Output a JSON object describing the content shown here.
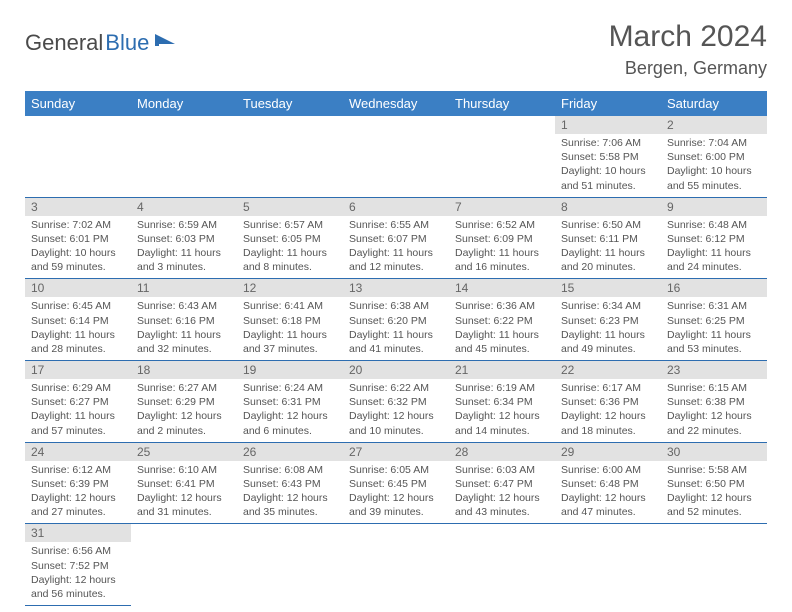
{
  "brand": {
    "part1": "General",
    "part2": "Blue"
  },
  "title": "March 2024",
  "location": "Bergen, Germany",
  "header_bg": "#3b7fc4",
  "dayname_bg": "#e2e2e2",
  "border_color": "#2d6db0",
  "weekdays": [
    "Sunday",
    "Monday",
    "Tuesday",
    "Wednesday",
    "Thursday",
    "Friday",
    "Saturday"
  ],
  "leading_blanks": 5,
  "days": [
    {
      "n": "1",
      "sr": "Sunrise: 7:06 AM",
      "ss": "Sunset: 5:58 PM",
      "dl": "Daylight: 10 hours and 51 minutes."
    },
    {
      "n": "2",
      "sr": "Sunrise: 7:04 AM",
      "ss": "Sunset: 6:00 PM",
      "dl": "Daylight: 10 hours and 55 minutes."
    },
    {
      "n": "3",
      "sr": "Sunrise: 7:02 AM",
      "ss": "Sunset: 6:01 PM",
      "dl": "Daylight: 10 hours and 59 minutes."
    },
    {
      "n": "4",
      "sr": "Sunrise: 6:59 AM",
      "ss": "Sunset: 6:03 PM",
      "dl": "Daylight: 11 hours and 3 minutes."
    },
    {
      "n": "5",
      "sr": "Sunrise: 6:57 AM",
      "ss": "Sunset: 6:05 PM",
      "dl": "Daylight: 11 hours and 8 minutes."
    },
    {
      "n": "6",
      "sr": "Sunrise: 6:55 AM",
      "ss": "Sunset: 6:07 PM",
      "dl": "Daylight: 11 hours and 12 minutes."
    },
    {
      "n": "7",
      "sr": "Sunrise: 6:52 AM",
      "ss": "Sunset: 6:09 PM",
      "dl": "Daylight: 11 hours and 16 minutes."
    },
    {
      "n": "8",
      "sr": "Sunrise: 6:50 AM",
      "ss": "Sunset: 6:11 PM",
      "dl": "Daylight: 11 hours and 20 minutes."
    },
    {
      "n": "9",
      "sr": "Sunrise: 6:48 AM",
      "ss": "Sunset: 6:12 PM",
      "dl": "Daylight: 11 hours and 24 minutes."
    },
    {
      "n": "10",
      "sr": "Sunrise: 6:45 AM",
      "ss": "Sunset: 6:14 PM",
      "dl": "Daylight: 11 hours and 28 minutes."
    },
    {
      "n": "11",
      "sr": "Sunrise: 6:43 AM",
      "ss": "Sunset: 6:16 PM",
      "dl": "Daylight: 11 hours and 32 minutes."
    },
    {
      "n": "12",
      "sr": "Sunrise: 6:41 AM",
      "ss": "Sunset: 6:18 PM",
      "dl": "Daylight: 11 hours and 37 minutes."
    },
    {
      "n": "13",
      "sr": "Sunrise: 6:38 AM",
      "ss": "Sunset: 6:20 PM",
      "dl": "Daylight: 11 hours and 41 minutes."
    },
    {
      "n": "14",
      "sr": "Sunrise: 6:36 AM",
      "ss": "Sunset: 6:22 PM",
      "dl": "Daylight: 11 hours and 45 minutes."
    },
    {
      "n": "15",
      "sr": "Sunrise: 6:34 AM",
      "ss": "Sunset: 6:23 PM",
      "dl": "Daylight: 11 hours and 49 minutes."
    },
    {
      "n": "16",
      "sr": "Sunrise: 6:31 AM",
      "ss": "Sunset: 6:25 PM",
      "dl": "Daylight: 11 hours and 53 minutes."
    },
    {
      "n": "17",
      "sr": "Sunrise: 6:29 AM",
      "ss": "Sunset: 6:27 PM",
      "dl": "Daylight: 11 hours and 57 minutes."
    },
    {
      "n": "18",
      "sr": "Sunrise: 6:27 AM",
      "ss": "Sunset: 6:29 PM",
      "dl": "Daylight: 12 hours and 2 minutes."
    },
    {
      "n": "19",
      "sr": "Sunrise: 6:24 AM",
      "ss": "Sunset: 6:31 PM",
      "dl": "Daylight: 12 hours and 6 minutes."
    },
    {
      "n": "20",
      "sr": "Sunrise: 6:22 AM",
      "ss": "Sunset: 6:32 PM",
      "dl": "Daylight: 12 hours and 10 minutes."
    },
    {
      "n": "21",
      "sr": "Sunrise: 6:19 AM",
      "ss": "Sunset: 6:34 PM",
      "dl": "Daylight: 12 hours and 14 minutes."
    },
    {
      "n": "22",
      "sr": "Sunrise: 6:17 AM",
      "ss": "Sunset: 6:36 PM",
      "dl": "Daylight: 12 hours and 18 minutes."
    },
    {
      "n": "23",
      "sr": "Sunrise: 6:15 AM",
      "ss": "Sunset: 6:38 PM",
      "dl": "Daylight: 12 hours and 22 minutes."
    },
    {
      "n": "24",
      "sr": "Sunrise: 6:12 AM",
      "ss": "Sunset: 6:39 PM",
      "dl": "Daylight: 12 hours and 27 minutes."
    },
    {
      "n": "25",
      "sr": "Sunrise: 6:10 AM",
      "ss": "Sunset: 6:41 PM",
      "dl": "Daylight: 12 hours and 31 minutes."
    },
    {
      "n": "26",
      "sr": "Sunrise: 6:08 AM",
      "ss": "Sunset: 6:43 PM",
      "dl": "Daylight: 12 hours and 35 minutes."
    },
    {
      "n": "27",
      "sr": "Sunrise: 6:05 AM",
      "ss": "Sunset: 6:45 PM",
      "dl": "Daylight: 12 hours and 39 minutes."
    },
    {
      "n": "28",
      "sr": "Sunrise: 6:03 AM",
      "ss": "Sunset: 6:47 PM",
      "dl": "Daylight: 12 hours and 43 minutes."
    },
    {
      "n": "29",
      "sr": "Sunrise: 6:00 AM",
      "ss": "Sunset: 6:48 PM",
      "dl": "Daylight: 12 hours and 47 minutes."
    },
    {
      "n": "30",
      "sr": "Sunrise: 5:58 AM",
      "ss": "Sunset: 6:50 PM",
      "dl": "Daylight: 12 hours and 52 minutes."
    },
    {
      "n": "31",
      "sr": "Sunrise: 6:56 AM",
      "ss": "Sunset: 7:52 PM",
      "dl": "Daylight: 12 hours and 56 minutes."
    }
  ]
}
